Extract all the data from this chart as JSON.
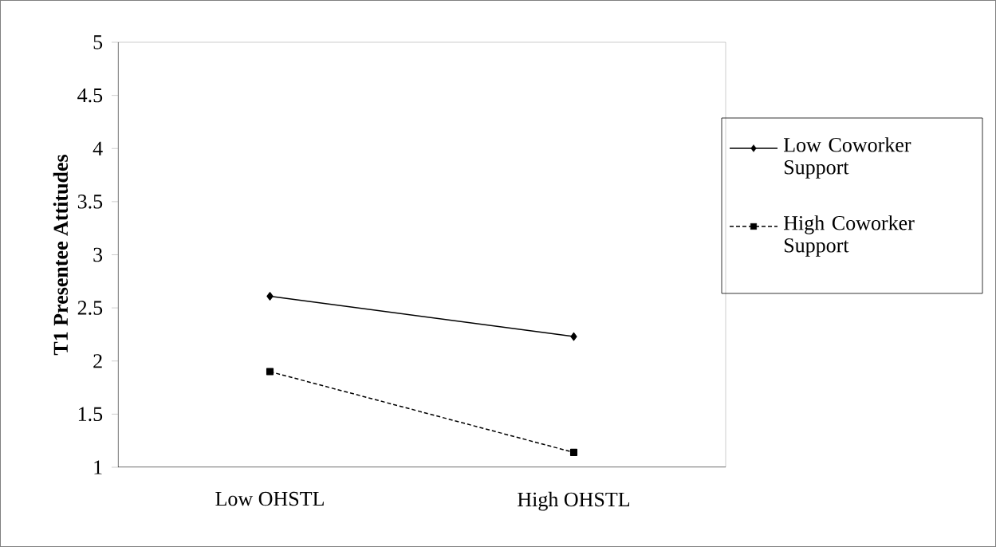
{
  "chart_data": {
    "type": "line",
    "ylabel": "T1 Presentee Attitudes",
    "categories": [
      "Low OHSTL",
      "High OHSTL"
    ],
    "series": [
      {
        "name": "Low Coworker Support",
        "color": "#000000",
        "values": [
          2.61,
          2.23
        ],
        "marker": "diamond",
        "line_style": "solid"
      },
      {
        "name": "High Coworker Support",
        "color": "#000000",
        "values": [
          1.9,
          1.14
        ],
        "marker": "square",
        "line_style": "dashed"
      }
    ],
    "ylim": [
      1,
      5
    ],
    "yticks": [
      1,
      1.5,
      2,
      2.5,
      3,
      3.5,
      4,
      4.5,
      5
    ],
    "grid": false,
    "legend": "right"
  }
}
